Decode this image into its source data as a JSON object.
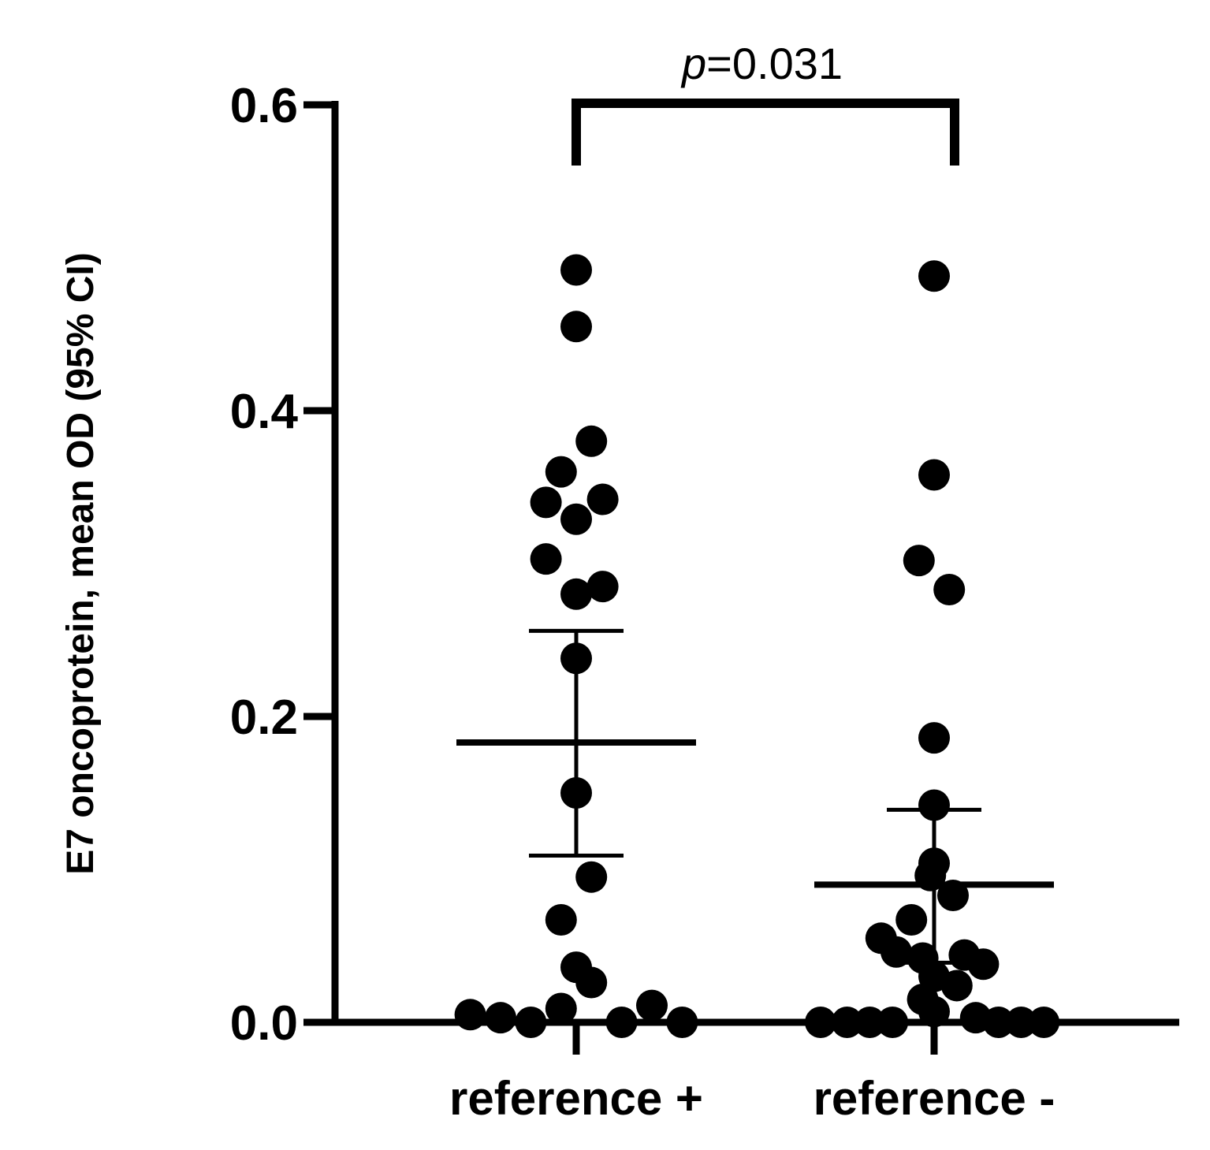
{
  "chart_data": {
    "type": "scatter",
    "title": "",
    "xlabel": "",
    "ylabel": "E7 oncoprotein, mean OD (95%  CI)",
    "ylim": [
      0,
      0.6
    ],
    "yticks": [
      0.0,
      0.2,
      0.4,
      0.6
    ],
    "ytick_labels": [
      "0.0",
      "0.2",
      "0.4",
      "0.6"
    ],
    "categories": [
      "reference +",
      "reference -"
    ],
    "grid": false,
    "legend": "none",
    "colors": {
      "points": "#000000",
      "lines": "#000000"
    },
    "series": [
      {
        "category": "reference +",
        "points": [
          {
            "x": 0.0,
            "y": 0.492
          },
          {
            "x": 0.0,
            "y": 0.455
          },
          {
            "x": 0.04,
            "y": 0.38
          },
          {
            "x": -0.04,
            "y": 0.36
          },
          {
            "x": -0.08,
            "y": 0.34
          },
          {
            "x": 0.07,
            "y": 0.342
          },
          {
            "x": 0.0,
            "y": 0.329
          },
          {
            "x": -0.08,
            "y": 0.303
          },
          {
            "x": 0.07,
            "y": 0.285
          },
          {
            "x": 0.0,
            "y": 0.28
          },
          {
            "x": 0.0,
            "y": 0.238
          },
          {
            "x": 0.0,
            "y": 0.15
          },
          {
            "x": 0.04,
            "y": 0.095
          },
          {
            "x": -0.04,
            "y": 0.067
          },
          {
            "x": 0.0,
            "y": 0.036
          },
          {
            "x": 0.04,
            "y": 0.026
          },
          {
            "x": -0.28,
            "y": 0.005
          },
          {
            "x": -0.2,
            "y": 0.003
          },
          {
            "x": -0.12,
            "y": 0.0
          },
          {
            "x": -0.04,
            "y": 0.009
          },
          {
            "x": 0.12,
            "y": 0.0
          },
          {
            "x": 0.2,
            "y": 0.011
          },
          {
            "x": 0.28,
            "y": 0.0
          }
        ],
        "mean": 0.183,
        "ci": [
          0.109,
          0.256
        ]
      },
      {
        "category": "reference -",
        "points": [
          {
            "x": 0.0,
            "y": 0.488
          },
          {
            "x": 0.0,
            "y": 0.358
          },
          {
            "x": -0.04,
            "y": 0.302
          },
          {
            "x": 0.04,
            "y": 0.283
          },
          {
            "x": 0.0,
            "y": 0.186
          },
          {
            "x": 0.0,
            "y": 0.142
          },
          {
            "x": 0.0,
            "y": 0.104
          },
          {
            "x": -0.01,
            "y": 0.096
          },
          {
            "x": 0.05,
            "y": 0.083
          },
          {
            "x": -0.06,
            "y": 0.067
          },
          {
            "x": -0.14,
            "y": 0.055
          },
          {
            "x": -0.1,
            "y": 0.046
          },
          {
            "x": -0.03,
            "y": 0.042
          },
          {
            "x": 0.08,
            "y": 0.044
          },
          {
            "x": 0.13,
            "y": 0.038
          },
          {
            "x": 0.0,
            "y": 0.03
          },
          {
            "x": 0.06,
            "y": 0.024
          },
          {
            "x": -0.03,
            "y": 0.015
          },
          {
            "x": 0.0,
            "y": 0.007
          },
          {
            "x": -0.3,
            "y": 0.0
          },
          {
            "x": -0.23,
            "y": 0.0
          },
          {
            "x": -0.17,
            "y": 0.0
          },
          {
            "x": -0.11,
            "y": 0.0
          },
          {
            "x": 0.11,
            "y": 0.003
          },
          {
            "x": 0.17,
            "y": 0.0
          },
          {
            "x": 0.23,
            "y": 0.0
          },
          {
            "x": 0.29,
            "y": 0.0
          }
        ],
        "mean": 0.09,
        "ci": [
          0.039,
          0.139
        ]
      }
    ],
    "annotation": {
      "p_italic": "p",
      "p_value": "=0.031",
      "between": [
        "reference +",
        "reference -"
      ]
    }
  }
}
